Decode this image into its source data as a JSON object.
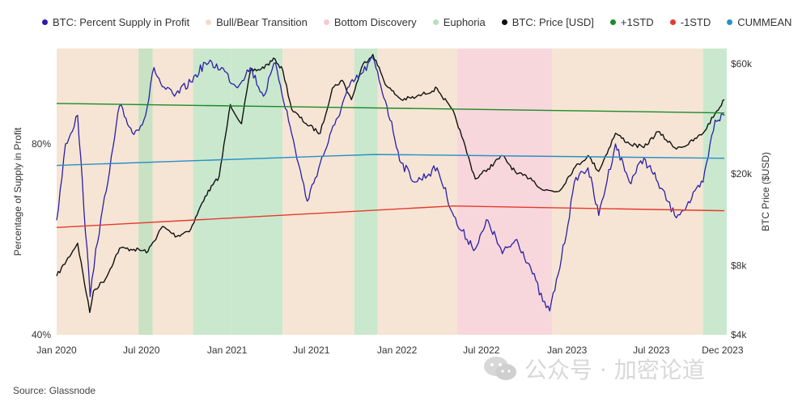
{
  "legend": [
    {
      "label": "BTC: Percent Supply in Profit",
      "color": "#2a1fa8"
    },
    {
      "label": "Bull/Bear Transition",
      "color": "#f3dcc6"
    },
    {
      "label": "Bottom Discovery",
      "color": "#f4c9cf"
    },
    {
      "label": "Euphoria",
      "color": "#b8e0bd"
    },
    {
      "label": "BTC: Price [USD]",
      "color": "#111111"
    },
    {
      "label": "+1STD",
      "color": "#1b8a2a"
    },
    {
      "label": "-1STD",
      "color": "#e53a2e"
    },
    {
      "label": "CUMMEAN",
      "color": "#2a8fc7"
    }
  ],
  "source": "Source: Glassnode",
  "watermark": "公众号 · 加密论道",
  "chart_data": {
    "type": "line",
    "x_tick_labels": [
      "Jan 2020",
      "Jul 2020",
      "Jan 2021",
      "Jul 2021",
      "Jan 2022",
      "Jul 2022",
      "Jan 2023",
      "Jul 2023",
      "Dec 2023"
    ],
    "left_axis": {
      "label": "Percentage of Supply in Profit",
      "ticks": [
        "80%",
        "40%"
      ],
      "ylim": [
        40,
        100
      ]
    },
    "right_axis": {
      "label": "BTC Price ($USD)",
      "ticks": [
        "$60k",
        "$20k",
        "$8k",
        "$4k"
      ],
      "scale": "log",
      "ylim": [
        4000,
        70000
      ]
    },
    "grid": false,
    "regions": [
      {
        "phase": "Bull/Bear Transition",
        "start": "2020-01-01",
        "end": "2020-10-20"
      },
      {
        "phase": "Euphoria",
        "start": "2020-06-25",
        "end": "2020-07-25"
      },
      {
        "phase": "Euphoria",
        "start": "2020-10-20",
        "end": "2021-01-10"
      },
      {
        "phase": "Euphoria",
        "start": "2021-01-10",
        "end": "2021-04-30"
      },
      {
        "phase": "Bull/Bear Transition",
        "start": "2021-04-30",
        "end": "2021-10-01"
      },
      {
        "phase": "Euphoria",
        "start": "2021-10-01",
        "end": "2021-11-20"
      },
      {
        "phase": "Bull/Bear Transition",
        "start": "2021-11-20",
        "end": "2022-05-10"
      },
      {
        "phase": "Bottom Discovery",
        "start": "2022-05-10",
        "end": "2022-11-30"
      },
      {
        "phase": "Bull/Bear Transition",
        "start": "2022-11-30",
        "end": "2023-10-20"
      },
      {
        "phase": "Euphoria",
        "start": "2023-10-20",
        "end": "2023-12-10"
      }
    ],
    "series": [
      {
        "name": "BTC: Price [USD]",
        "axis": "right",
        "x": [
          "2020-01-01",
          "2020-02-15",
          "2020-03-12",
          "2020-03-20",
          "2020-04-15",
          "2020-05-15",
          "2020-06-15",
          "2020-07-15",
          "2020-08-15",
          "2020-09-15",
          "2020-10-15",
          "2020-11-15",
          "2020-12-15",
          "2021-01-08",
          "2021-02-01",
          "2021-02-20",
          "2021-03-15",
          "2021-04-14",
          "2021-05-01",
          "2021-05-20",
          "2021-06-20",
          "2021-07-20",
          "2021-08-15",
          "2021-09-05",
          "2021-09-25",
          "2021-10-20",
          "2021-11-10",
          "2021-12-10",
          "2022-01-10",
          "2022-02-10",
          "2022-03-28",
          "2022-05-05",
          "2022-05-20",
          "2022-06-18",
          "2022-07-15",
          "2022-08-15",
          "2022-09-15",
          "2022-10-15",
          "2022-11-10",
          "2022-12-15",
          "2023-01-15",
          "2023-02-15",
          "2023-03-10",
          "2023-04-15",
          "2023-05-15",
          "2023-06-15",
          "2023-07-15",
          "2023-08-20",
          "2023-09-15",
          "2023-10-20",
          "2023-11-15",
          "2023-12-05"
        ],
        "values": [
          7200,
          10000,
          5000,
          6200,
          7000,
          9500,
          9400,
          9200,
          11800,
          10700,
          11500,
          16000,
          19500,
          40000,
          33000,
          56000,
          57000,
          63000,
          56000,
          38000,
          33000,
          30000,
          47000,
          51000,
          42000,
          60000,
          66000,
          48000,
          42000,
          43000,
          47000,
          36000,
          29000,
          19000,
          21000,
          24000,
          20000,
          19200,
          17000,
          16800,
          21000,
          24000,
          20500,
          30000,
          27000,
          26000,
          30500,
          26000,
          26600,
          30000,
          36500,
          42000
        ]
      },
      {
        "name": "BTC: Percent Supply in Profit",
        "axis": "left",
        "x": [
          "2020-01-01",
          "2020-01-20",
          "2020-02-15",
          "2020-03-13",
          "2020-03-25",
          "2020-04-20",
          "2020-05-15",
          "2020-06-15",
          "2020-07-10",
          "2020-07-28",
          "2020-08-15",
          "2020-09-10",
          "2020-10-15",
          "2020-11-15",
          "2020-12-20",
          "2021-01-20",
          "2021-02-20",
          "2021-03-20",
          "2021-04-15",
          "2021-05-20",
          "2021-06-22",
          "2021-07-20",
          "2021-08-20",
          "2021-09-20",
          "2021-10-20",
          "2021-11-10",
          "2021-12-10",
          "2022-01-10",
          "2022-02-10",
          "2022-03-28",
          "2022-05-10",
          "2022-06-18",
          "2022-07-15",
          "2022-08-15",
          "2022-09-15",
          "2022-10-15",
          "2022-11-10",
          "2022-11-25",
          "2022-12-20",
          "2023-01-20",
          "2023-02-15",
          "2023-03-10",
          "2023-04-15",
          "2023-05-15",
          "2023-06-15",
          "2023-07-15",
          "2023-08-20",
          "2023-09-15",
          "2023-10-20",
          "2023-11-15",
          "2023-12-05"
        ],
        "values": [
          64,
          80,
          86,
          48,
          58,
          72,
          88,
          82,
          86,
          96,
          92,
          90,
          93,
          97,
          96,
          92,
          96,
          90,
          97,
          82,
          68,
          76,
          84,
          92,
          95,
          98,
          88,
          76,
          72,
          75,
          63,
          58,
          64,
          57,
          60,
          54,
          47,
          45,
          56,
          73,
          75,
          65,
          80,
          72,
          77,
          72,
          65,
          67,
          72,
          85,
          86
        ]
      },
      {
        "name": "+1STD",
        "axis": "left",
        "x": [
          "2020-01-01",
          "2023-12-05"
        ],
        "values": [
          88.5,
          86.5
        ]
      },
      {
        "name": "CUMMEAN",
        "axis": "left",
        "x": [
          "2020-01-01",
          "2021-11-15",
          "2023-12-05"
        ],
        "values": [
          75.5,
          77.8,
          77.0
        ]
      },
      {
        "name": "-1STD",
        "axis": "left",
        "x": [
          "2020-01-01",
          "2022-05-01",
          "2023-12-05"
        ],
        "values": [
          62.5,
          67.0,
          66.0
        ]
      }
    ]
  }
}
